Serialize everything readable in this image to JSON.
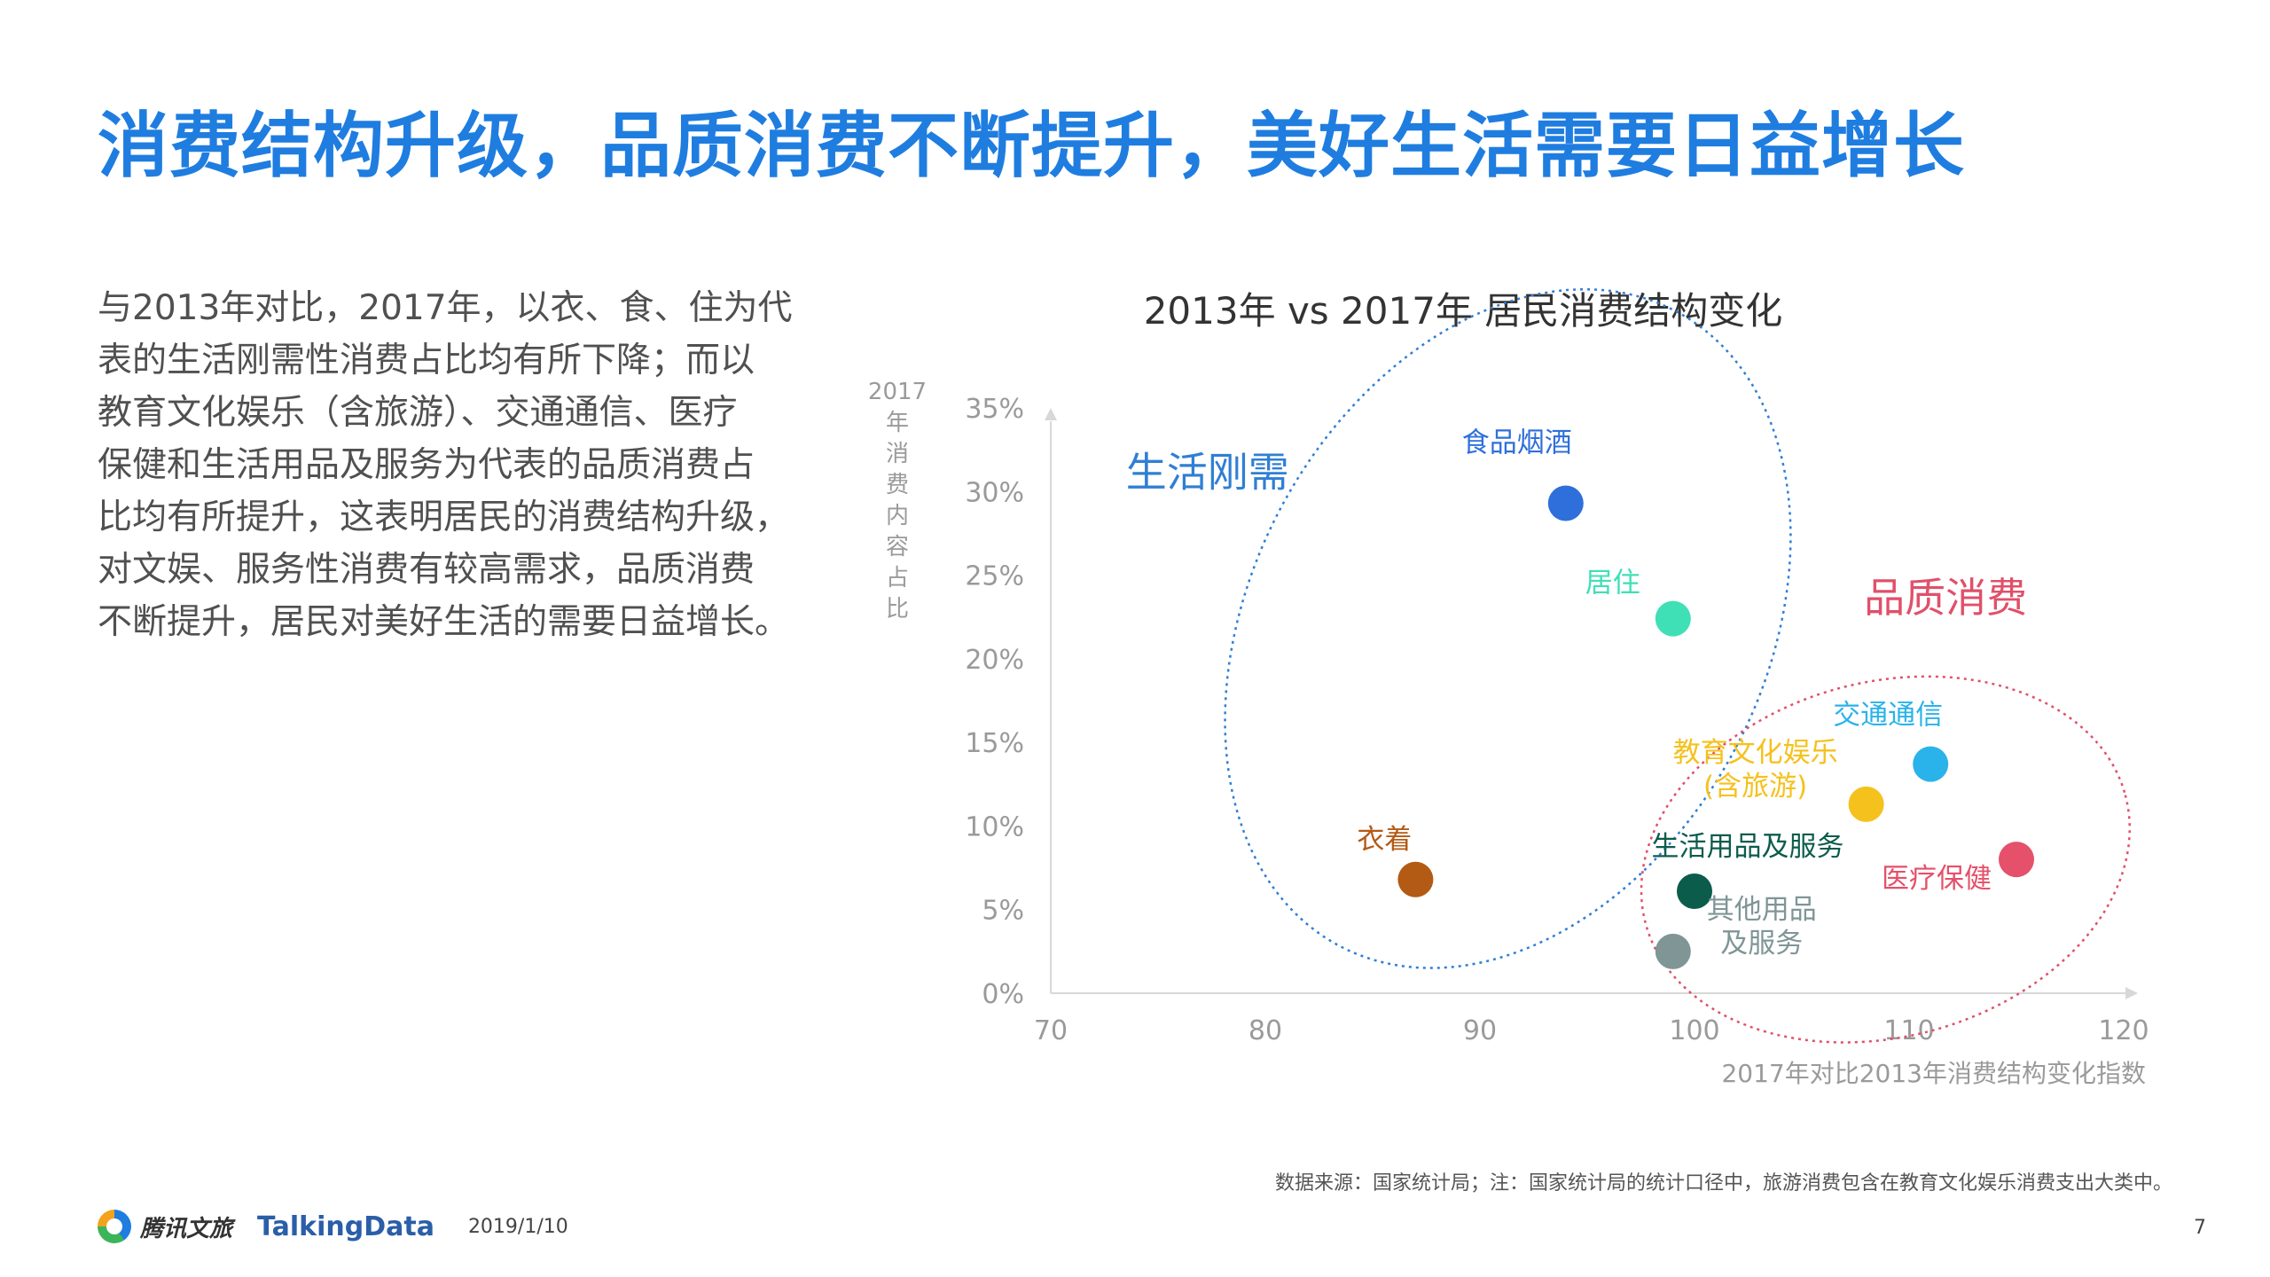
{
  "title": "消费结构升级，品质消费不断提升，美好生活需要日益增长",
  "body_lines": [
    "与2013年对比，2017年，以衣、食、住为代",
    "表的生活刚需性消费占比均有所下降；而以",
    "教育文化娱乐（含旅游）、交通通信、医疗",
    "保健和生活用品及服务为代表的品质消费占",
    "比均有所提升，这表明居民的消费结构升级，",
    "对文娱、服务性消费有较高需求，品质消费",
    "不断提升，居民对美好生活的需要日益增长。"
  ],
  "chart_data": {
    "type": "scatter",
    "title": "2013年 vs 2017年 居民消费结构变化",
    "xlabel": "2017年对比2013年消费结构变化指数",
    "ylabel": "2017年消费内容占比",
    "xlim": [
      70,
      120
    ],
    "ylim": [
      0,
      35
    ],
    "x_ticks": [
      {
        "value": 70,
        "label": "70"
      },
      {
        "value": 80,
        "label": "80"
      },
      {
        "value": 90,
        "label": "90"
      },
      {
        "value": 100,
        "label": "100"
      },
      {
        "value": 110,
        "label": "110"
      },
      {
        "value": 120,
        "label": "120"
      }
    ],
    "y_ticks": [
      {
        "value": 0,
        "label": "0%"
      },
      {
        "value": 5,
        "label": "5%"
      },
      {
        "value": 10,
        "label": "10%"
      },
      {
        "value": 15,
        "label": "15%"
      },
      {
        "value": 20,
        "label": "20%"
      },
      {
        "value": 25,
        "label": "25%"
      },
      {
        "value": 30,
        "label": "30%"
      },
      {
        "value": 35,
        "label": "35%"
      }
    ],
    "points": [
      {
        "label": "食品烟酒",
        "x": 94,
        "y": 29.3,
        "color": "#2f6fdc"
      },
      {
        "label": "居住",
        "x": 99,
        "y": 22.4,
        "color": "#3fe0b6"
      },
      {
        "label": "衣着",
        "x": 87,
        "y": 6.8,
        "color": "#b35a14"
      },
      {
        "label": "交通通信",
        "x": 111,
        "y": 13.7,
        "color": "#2ab3ea"
      },
      {
        "label": "教育文化娱乐\n(含旅游)",
        "x": 108,
        "y": 11.3,
        "color": "#f5c11d"
      },
      {
        "label": "生活用品及服务",
        "x": 100,
        "y": 6.1,
        "color": "#0c5c4b"
      },
      {
        "label": "医疗保健",
        "x": 115,
        "y": 8,
        "color": "#e5506a"
      },
      {
        "label": "其他用品\n及服务",
        "x": 99,
        "y": 2.5,
        "color": "#7f9596"
      }
    ],
    "groups": [
      {
        "label": "生活刚需",
        "color": "#2f7fd4"
      },
      {
        "label": "品质消费",
        "color": "#e0506a"
      }
    ],
    "grid": false
  },
  "footnote": "数据来源：国家统计局；注：国家统计局的统计口径中，旅游消费包含在教育文化娱乐消费支出大类中。",
  "footer": {
    "brand1": "腾讯文旅",
    "brand2": "TalkingData",
    "date": "2019/1/10",
    "page": "7"
  }
}
